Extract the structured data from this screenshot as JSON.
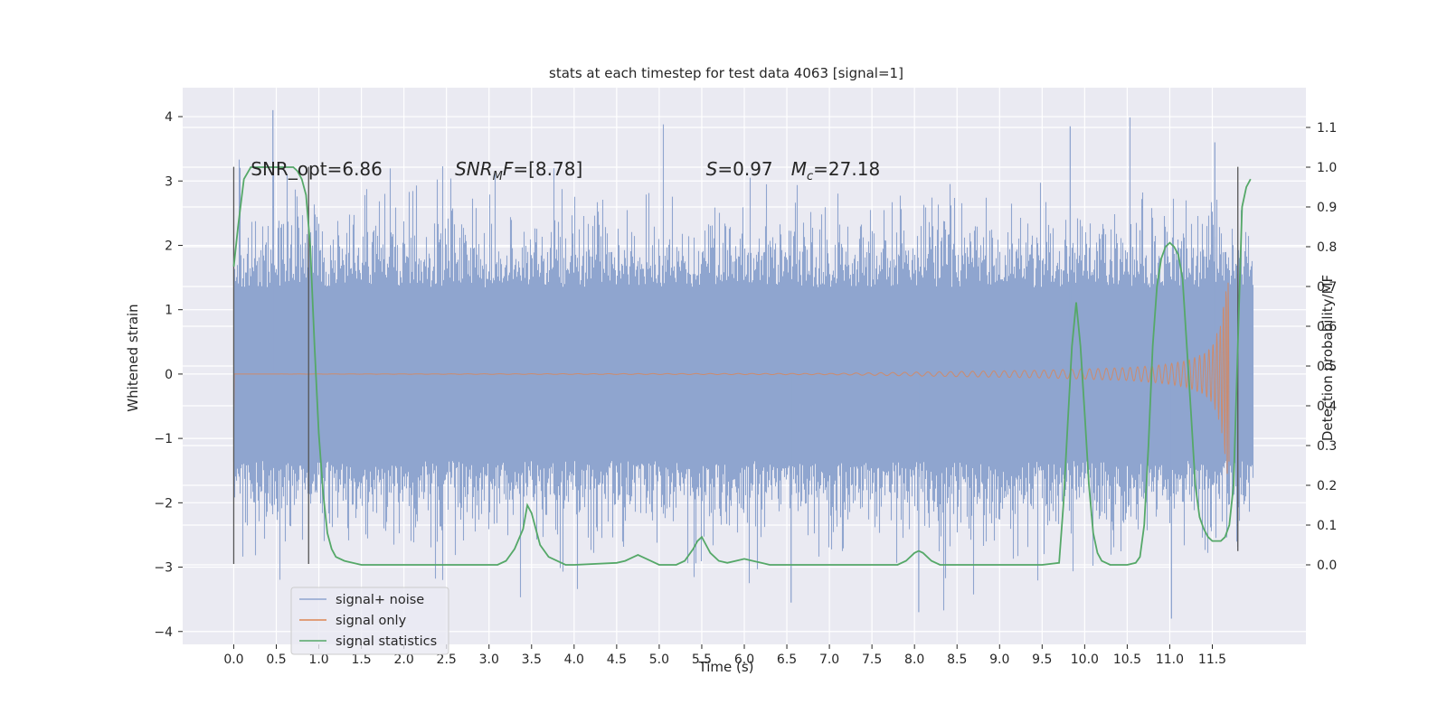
{
  "chart_data": {
    "type": "line",
    "title": "stats at each timestep for test data 4063 [signal=1]",
    "xlabel": "Time (s)",
    "ylabel": "Whitened strain",
    "ylabel_right": "Detection probability/MF",
    "xlim": [
      -0.6,
      12.6
    ],
    "ylim": [
      -4.2,
      4.45
    ],
    "ylim_right": [
      -0.2,
      1.2
    ],
    "grid": true,
    "background": "#eaeaf2",
    "legend_placement": "lower-left",
    "x_ticks": [
      0.0,
      0.5,
      1.0,
      1.5,
      2.0,
      2.5,
      3.0,
      3.5,
      4.0,
      4.5,
      5.0,
      5.5,
      6.0,
      6.5,
      7.0,
      7.5,
      8.0,
      8.5,
      9.0,
      9.5,
      10.0,
      10.5,
      11.0,
      11.5
    ],
    "x_tick_labels": [
      "0.0",
      "0.5",
      "1.0",
      "1.5",
      "2.0",
      "2.5",
      "3.0",
      "3.5",
      "4.0",
      "4.5",
      "5.0",
      "5.5",
      "6.0",
      "6.5",
      "7.0",
      "7.5",
      "8.0",
      "8.5",
      "9.0",
      "9.5",
      "10.0",
      "10.5",
      "11.0",
      "11.5"
    ],
    "y_ticks": [
      -4,
      -3,
      -2,
      -1,
      0,
      1,
      2,
      3,
      4
    ],
    "y_tick_labels": [
      "−4",
      "−3",
      "−2",
      "−1",
      "0",
      "1",
      "2",
      "3",
      "4"
    ],
    "y_ticks_right": [
      0.0,
      0.1,
      0.2,
      0.3,
      0.4,
      0.5,
      0.6,
      0.7,
      0.8,
      0.9,
      1.0,
      1.1
    ],
    "y_tick_labels_right": [
      "0.0",
      "0.1",
      "0.2",
      "0.3",
      "0.4",
      "0.5",
      "0.6",
      "0.7",
      "0.8",
      "0.9",
      "1.0",
      "1.1"
    ],
    "series": [
      {
        "name": "signal+ noise",
        "color": "#8fa5cf",
        "axis": "left",
        "x_range": [
          0.0,
          11.98
        ],
        "sample_rate_hz": 2048,
        "note_values": "dense whitened noise, |strain| mostly within ±2, peaks reaching about 4.1 near 0.46 s and −3.8 near 11.02 s"
      },
      {
        "name": "signal only",
        "color": "#dd8452",
        "axis": "left",
        "x_range": [
          0.0,
          11.7
        ],
        "envelope": {
          "x": [
            0.0,
            7.0,
            8.0,
            9.0,
            9.5,
            10.0,
            10.5,
            10.8,
            11.0,
            11.2,
            11.4,
            11.5,
            11.6,
            11.65,
            11.7
          ],
          "amplitude": [
            0.0,
            0.01,
            0.03,
            0.05,
            0.06,
            0.08,
            0.1,
            0.13,
            0.16,
            0.21,
            0.32,
            0.45,
            0.8,
            1.4,
            1.7
          ]
        }
      },
      {
        "name": "signal statistics",
        "color": "#55a868",
        "axis": "right",
        "x": [
          0.0,
          0.05,
          0.12,
          0.2,
          0.3,
          0.45,
          0.6,
          0.7,
          0.75,
          0.8,
          0.85,
          0.9,
          0.95,
          1.0,
          1.05,
          1.1,
          1.15,
          1.2,
          1.3,
          1.5,
          2.0,
          2.5,
          3.0,
          3.1,
          3.2,
          3.3,
          3.4,
          3.45,
          3.5,
          3.55,
          3.6,
          3.7,
          3.8,
          3.9,
          4.0,
          4.5,
          4.6,
          4.7,
          4.75,
          4.8,
          4.9,
          5.0,
          5.2,
          5.3,
          5.4,
          5.45,
          5.5,
          5.55,
          5.6,
          5.7,
          5.8,
          5.9,
          6.0,
          6.1,
          6.2,
          6.3,
          6.5,
          7.0,
          7.5,
          7.8,
          7.9,
          8.0,
          8.05,
          8.1,
          8.2,
          8.3,
          8.5,
          9.0,
          9.5,
          9.7,
          9.75,
          9.8,
          9.85,
          9.9,
          9.95,
          10.0,
          10.05,
          10.1,
          10.15,
          10.2,
          10.3,
          10.5,
          10.6,
          10.65,
          10.7,
          10.75,
          10.8,
          10.85,
          10.9,
          10.95,
          11.0,
          11.05,
          11.1,
          11.15,
          11.2,
          11.25,
          11.3,
          11.35,
          11.4,
          11.45,
          11.5,
          11.6,
          11.65,
          11.7,
          11.75,
          11.8,
          11.85,
          11.9,
          11.95
        ],
        "y": [
          0.75,
          0.85,
          0.97,
          1.0,
          1.0,
          1.0,
          1.0,
          1.0,
          0.99,
          0.97,
          0.93,
          0.8,
          0.55,
          0.33,
          0.18,
          0.08,
          0.04,
          0.02,
          0.01,
          0.0,
          0.0,
          0.0,
          0.0,
          0.0,
          0.01,
          0.04,
          0.09,
          0.15,
          0.13,
          0.09,
          0.05,
          0.02,
          0.01,
          0.0,
          0.0,
          0.005,
          0.01,
          0.02,
          0.025,
          0.02,
          0.01,
          0.0,
          0.0,
          0.01,
          0.04,
          0.06,
          0.07,
          0.05,
          0.03,
          0.01,
          0.005,
          0.01,
          0.015,
          0.01,
          0.005,
          0.0,
          0.0,
          0.0,
          0.0,
          0.0,
          0.01,
          0.03,
          0.035,
          0.03,
          0.01,
          0.0,
          0.0,
          0.0,
          0.0,
          0.005,
          0.15,
          0.35,
          0.55,
          0.66,
          0.55,
          0.38,
          0.2,
          0.08,
          0.03,
          0.01,
          0.0,
          0.0,
          0.005,
          0.02,
          0.1,
          0.3,
          0.55,
          0.7,
          0.77,
          0.8,
          0.81,
          0.8,
          0.78,
          0.72,
          0.55,
          0.38,
          0.2,
          0.12,
          0.09,
          0.07,
          0.06,
          0.06,
          0.07,
          0.1,
          0.2,
          0.55,
          0.9,
          0.95,
          0.97
        ]
      }
    ],
    "vertical_lines_x": [
      0.0,
      0.88,
      11.8
    ],
    "annotations": [
      {
        "text": "SNR_opt=6.86",
        "x": 0.2,
        "y_right": 0.98
      },
      {
        "text": "SNRMF=[8.78]",
        "x": 2.6,
        "y_right": 0.98
      },
      {
        "text": "S=0.97",
        "x": 5.55,
        "y_right": 0.98
      },
      {
        "text": "Mc=27.18",
        "x": 6.55,
        "y_right": 0.98
      }
    ]
  }
}
